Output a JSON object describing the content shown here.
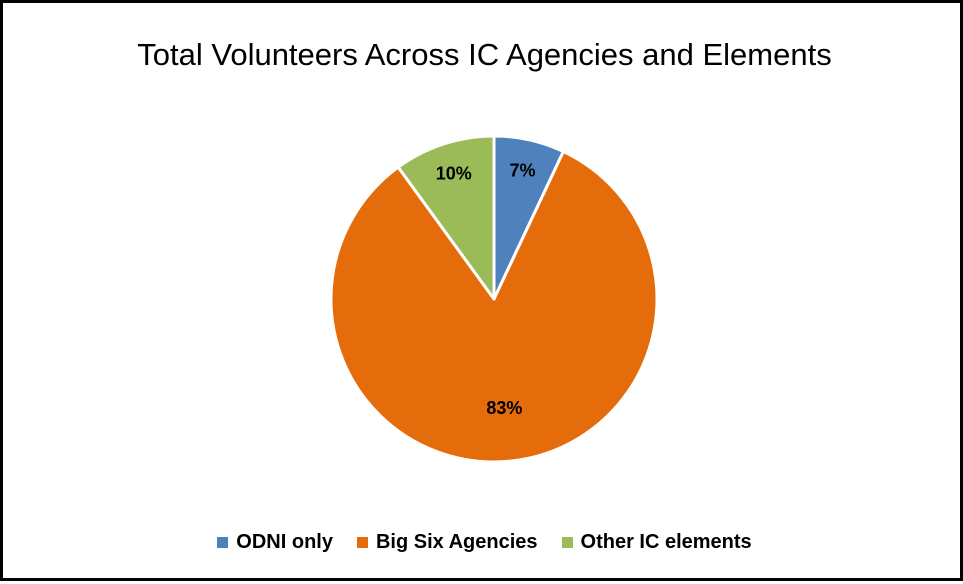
{
  "chart_data": {
    "type": "pie",
    "title": "Total Volunteers Across IC Agencies and Elements",
    "slices": [
      {
        "label": "ODNI only",
        "value": 7,
        "display": "7%",
        "color": "#4F81BD"
      },
      {
        "label": "Big Six Agencies",
        "value": 83,
        "display": "83%",
        "color": "#E46C0A"
      },
      {
        "label": "Other IC elements",
        "value": 10,
        "display": "10%",
        "color": "#9BBB59"
      }
    ],
    "legend_position": "bottom"
  }
}
